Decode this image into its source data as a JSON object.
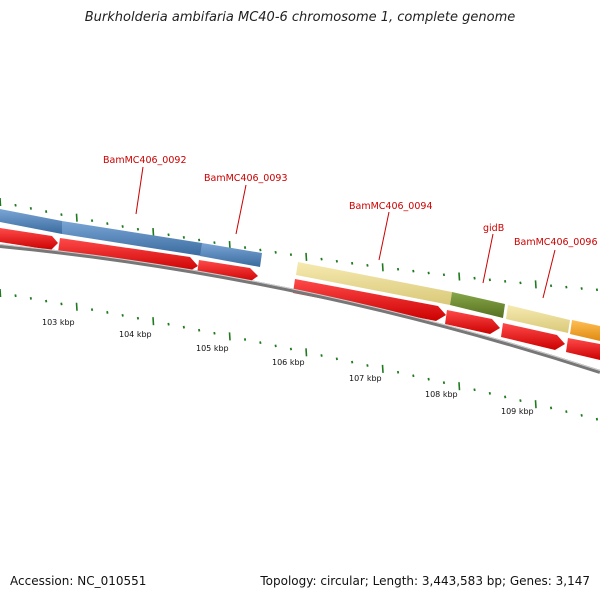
{
  "title": "Burkholderia ambifaria MC40-6 chromosome 1, complete genome",
  "footer": {
    "accession": "Accession: NC_010551",
    "summary": "Topology: circular; Length: 3,443,583 bp; Genes: 3,147"
  },
  "gene_labels": [
    "BamMC406_0092",
    "BamMC406_0093",
    "BamMC406_0094",
    "gidB",
    "BamMC406_0096"
  ],
  "kbp_labels": [
    "103 kbp",
    "104 kbp",
    "105 kbp",
    "106 kbp",
    "107 kbp",
    "108 kbp",
    "109 kbp"
  ],
  "colors": {
    "label_red": "#cc0000",
    "cds_red": "#ee1111",
    "blue_feature": "#4a7fb5",
    "pale_yellow_feature": "#efe199",
    "olive_feature": "#6b8c2a",
    "orange_feature": "#f5a020",
    "backbone_gray": "#777777",
    "tick_green": "#1f7a1f"
  }
}
